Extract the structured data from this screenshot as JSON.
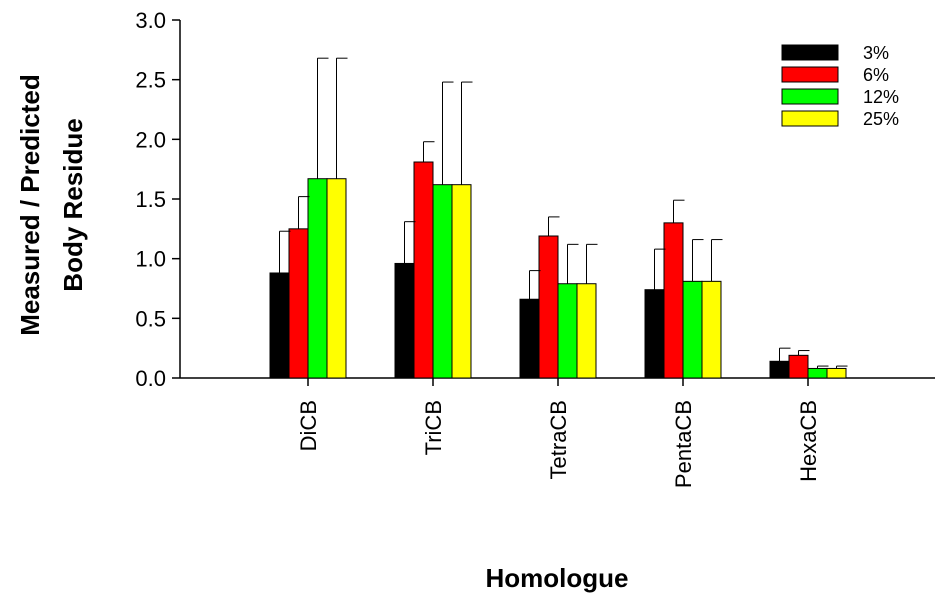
{
  "chart_data": {
    "type": "bar",
    "title": "",
    "xlabel": "Homologue",
    "ylabel_lines": [
      "Measured / Predicted",
      "Body Residue"
    ],
    "ylim": [
      0,
      3.0
    ],
    "yticks": [
      "0.0",
      "0.5",
      "1.0",
      "1.5",
      "2.0",
      "2.5",
      "3.0"
    ],
    "categories": [
      "DiCB",
      "TriCB",
      "TetraCB",
      "PentaCB",
      "HexaCB"
    ],
    "legend_position": "top-right",
    "grid": false,
    "series": [
      {
        "name": "3%",
        "color": "#000000",
        "values": [
          0.88,
          0.96,
          0.66,
          0.74,
          0.14
        ],
        "error_upper": [
          1.23,
          1.31,
          0.9,
          1.08,
          0.25
        ]
      },
      {
        "name": "6%",
        "color": "#ff0000",
        "values": [
          1.25,
          1.81,
          1.19,
          1.3,
          0.19
        ],
        "error_upper": [
          1.52,
          1.98,
          1.35,
          1.49,
          0.23
        ]
      },
      {
        "name": "12%",
        "color": "#00ff00",
        "values": [
          1.67,
          1.62,
          0.79,
          0.81,
          0.08
        ],
        "error_upper": [
          2.68,
          2.48,
          1.12,
          1.16,
          0.1
        ]
      },
      {
        "name": "25%",
        "color": "#ffff00",
        "values": [
          1.67,
          1.62,
          0.79,
          0.81,
          0.08
        ],
        "error_upper": [
          2.68,
          2.48,
          1.12,
          1.16,
          0.1
        ]
      }
    ]
  }
}
